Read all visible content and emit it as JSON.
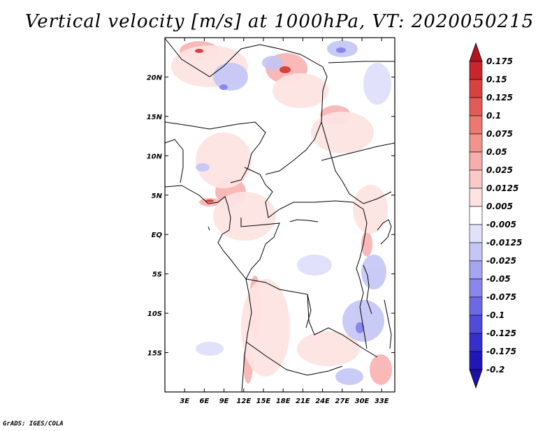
{
  "title": "Vertical velocity [m/s] at 1000hPa, VT: 2020050215",
  "credit": "GrADS: IGES/COLA",
  "map": {
    "lat_range": [
      -20,
      25
    ],
    "lon_range": [
      0,
      35
    ],
    "lat_labels": [
      "20N",
      "15N",
      "10N",
      "5N",
      "EQ",
      "5S",
      "10S",
      "15S"
    ],
    "lon_labels": [
      "3E",
      "6E",
      "9E",
      "12E",
      "15E",
      "18E",
      "21E",
      "24E",
      "27E",
      "30E",
      "33E"
    ]
  },
  "colorbar": {
    "levels": [
      "0.175",
      "0.15",
      "0.125",
      "0.1",
      "0.075",
      "0.05",
      "0.025",
      "0.0125",
      "0.005",
      "-0.005",
      "-0.0125",
      "-0.025",
      "-0.05",
      "-0.075",
      "-0.1",
      "-0.125",
      "-0.175",
      "-0.2"
    ],
    "colors": [
      "#b2151d",
      "#c9262b",
      "#d9413f",
      "#e35b56",
      "#ec7872",
      "#f3938e",
      "#f7adab",
      "#fbc9c7",
      "#fde4e3",
      "#ffffff",
      "#e1e1fb",
      "#c5c5f6",
      "#a6a5f1",
      "#8987ec",
      "#6d69e4",
      "#4f4cdb",
      "#3530cc",
      "#2117b8",
      "#1d12a8"
    ]
  }
}
